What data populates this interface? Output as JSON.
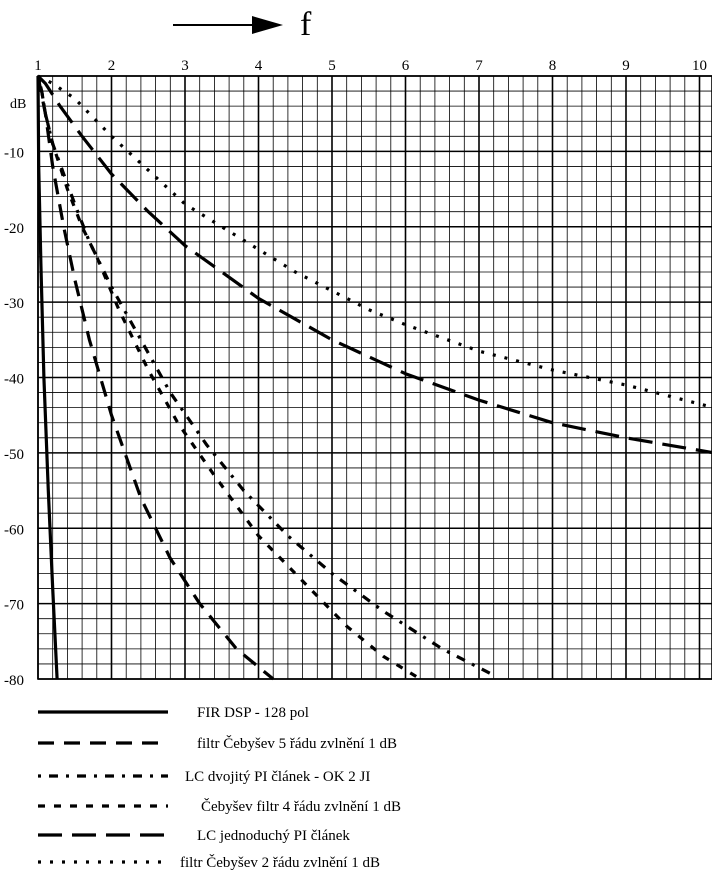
{
  "chart_data": {
    "type": "line",
    "xlabel": "f",
    "ylabel": "dB",
    "xlim": [
      1,
      10.2
    ],
    "ylim": [
      -80,
      0
    ],
    "grid": true,
    "legend_position": "bottom",
    "x_ticks": [
      "1",
      "2",
      "3",
      "4",
      "5",
      "6",
      "7",
      "8",
      "9",
      "10"
    ],
    "y_ticks": [
      "dB",
      "-10",
      "-20",
      "-30",
      "-40",
      "-50",
      "-60",
      "-70",
      "-80"
    ],
    "series": [
      {
        "name": "FIR DSP - 128 pol",
        "style": "solid",
        "x": [
          1.0,
          1.01,
          1.04,
          1.08,
          1.14,
          1.2,
          1.26
        ],
        "y": [
          0,
          -12,
          -25,
          -40,
          -55,
          -68,
          -80
        ]
      },
      {
        "name": "filtr Čebyšev 5 řádu zvlnění 1 dB",
        "style": "dashed",
        "x": [
          1.0,
          1.04,
          1.1,
          1.2,
          1.35,
          1.5,
          1.7,
          2.0,
          2.4,
          2.8,
          3.2,
          3.7,
          4.2
        ],
        "y": [
          0,
          -2,
          -5,
          -12,
          -20,
          -27,
          -35,
          -45,
          -56,
          -64,
          -70,
          -76,
          -80
        ]
      },
      {
        "name": "LC dvojitý PI článek - OK 2 JI",
        "style": "dash-dot",
        "x": [
          1.0,
          1.05,
          1.1,
          1.2,
          1.35,
          1.5,
          1.7,
          2.0,
          2.4,
          2.8,
          3.3,
          3.8,
          4.4,
          5.0,
          5.7,
          6.5,
          7.2
        ],
        "y": [
          0,
          -2,
          -5,
          -9,
          -13,
          -17,
          -22,
          -28,
          -35,
          -42,
          -49,
          -55,
          -61,
          -66,
          -71,
          -76,
          -79.5
        ]
      },
      {
        "name": "Čebyšev filtr 4 řádu zvlnění 1 dB",
        "style": "short-dash",
        "x": [
          1.0,
          1.05,
          1.1,
          1.2,
          1.4,
          1.6,
          1.8,
          2.1,
          2.5,
          2.9,
          3.4,
          4.0,
          4.6,
          5.2,
          5.7,
          6.2
        ],
        "y": [
          0,
          -2,
          -5,
          -9,
          -15,
          -20,
          -24,
          -31,
          -39,
          -46,
          -53,
          -61,
          -67,
          -73,
          -77,
          -80
        ]
      },
      {
        "name": "LC jednoduchý PI článek",
        "style": "long-dash",
        "x": [
          1.0,
          1.1,
          1.3,
          1.6,
          2.0,
          2.5,
          3.0,
          3.5,
          4.0,
          5.0,
          6.0,
          7.0,
          8.0,
          9.0,
          10.2
        ],
        "y": [
          0,
          -1,
          -4,
          -8,
          -13,
          -18,
          -22.5,
          -26,
          -29.5,
          -35,
          -39.5,
          -43,
          -46,
          -48,
          -50
        ]
      },
      {
        "name": "filtr Čebyšev 2 řádu zvlnění 1 dB",
        "style": "dotted",
        "x": [
          1.0,
          1.2,
          1.5,
          2.0,
          2.5,
          3.0,
          3.5,
          4.0,
          4.5,
          5.0,
          5.5,
          6.0,
          7.0,
          8.0,
          9.0,
          10.2
        ],
        "y": [
          0,
          -1,
          -3,
          -8,
          -12.5,
          -17,
          -20,
          -23,
          -26,
          -28.5,
          -31,
          -33,
          -36.5,
          -39,
          -41,
          -44
        ]
      }
    ]
  }
}
